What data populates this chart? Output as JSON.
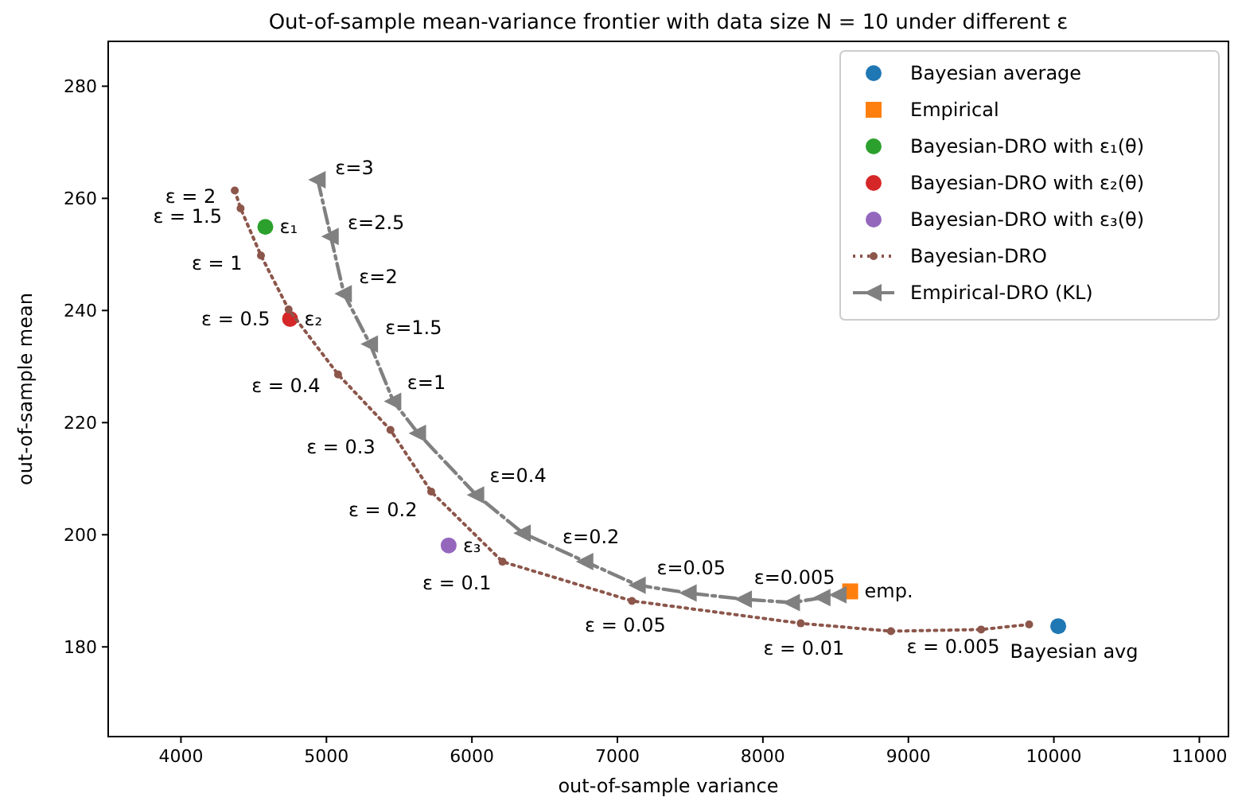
{
  "chart_data": {
    "type": "scatter",
    "title": "Out-of-sample mean-variance frontier with data size N = 10 under different ε",
    "xlabel": "out-of-sample variance",
    "ylabel": "out-of-sample mean",
    "xlim": [
      3500,
      11200
    ],
    "ylim": [
      164,
      288
    ],
    "xticks": [
      4000,
      5000,
      6000,
      7000,
      8000,
      9000,
      10000,
      11000
    ],
    "yticks": [
      180,
      200,
      220,
      240,
      260,
      280
    ],
    "grid": false,
    "legend": "top right",
    "series": [
      {
        "name": "Bayesian average",
        "color": "#1f77b4",
        "marker": "circle",
        "x": [
          10030
        ],
        "values": [
          183.7
        ]
      },
      {
        "name": "Empirical",
        "color": "#ff7f0e",
        "marker": "square",
        "x": [
          8600
        ],
        "values": [
          189.9
        ]
      },
      {
        "name": "Bayesian-DRO with ε₁(θ)",
        "color": "#2ca02c",
        "marker": "circle",
        "x": [
          4580
        ],
        "values": [
          254.9
        ]
      },
      {
        "name": "Bayesian-DRO with ε₂(θ)",
        "color": "#d62728",
        "marker": "circle",
        "x": [
          4750
        ],
        "values": [
          238.5
        ]
      },
      {
        "name": "Bayesian-DRO with ε₃(θ)",
        "color": "#9467bd",
        "marker": "circle",
        "x": [
          5840
        ],
        "values": [
          198.1
        ]
      },
      {
        "name": "Bayesian-DRO",
        "type": "line",
        "color": "#8c564b",
        "marker": "circle",
        "line_style": "dotted",
        "x": [
          4370,
          4410,
          4550,
          4740,
          5080,
          5440,
          5720,
          6210,
          7100,
          8260,
          8880,
          9500,
          9830
        ],
        "values": [
          261.4,
          258.2,
          249.8,
          240.2,
          228.6,
          218.7,
          207.7,
          195.2,
          188.2,
          184.2,
          182.8,
          183.1,
          184.0
        ]
      },
      {
        "name": "Empirical-DRO (KL)",
        "type": "line",
        "color": "#808080",
        "marker": "triangle",
        "line_style": "dashed",
        "x": [
          4940,
          5030,
          5120,
          5300,
          5460,
          5630,
          6030,
          6350,
          6780,
          7140,
          7490,
          7870,
          8200,
          8410,
          8520
        ],
        "values": [
          263.3,
          253.2,
          243.0,
          234.0,
          223.8,
          218.1,
          207.1,
          200.3,
          195.2,
          191.0,
          189.6,
          188.5,
          187.9,
          188.8,
          189.3
        ]
      }
    ],
    "annotations": [
      {
        "text": "ε = 2",
        "x": 4370,
        "y": 261.4
      },
      {
        "text": "ε = 1.5",
        "x": 4410,
        "y": 258.2
      },
      {
        "text": "ε = 1",
        "x": 4550,
        "y": 249.8
      },
      {
        "text": "ε = 0.5",
        "x": 4740,
        "y": 240.2
      },
      {
        "text": "ε = 0.4",
        "x": 5080,
        "y": 228.6
      },
      {
        "text": "ε = 0.3",
        "x": 5440,
        "y": 218.7
      },
      {
        "text": "ε = 0.2",
        "x": 5720,
        "y": 207.7
      },
      {
        "text": "ε = 0.1",
        "x": 6210,
        "y": 195.2
      },
      {
        "text": "ε = 0.05",
        "x": 7100,
        "y": 188.2
      },
      {
        "text": "ε = 0.01",
        "x": 8260,
        "y": 184.2
      },
      {
        "text": "ε = 0.005",
        "x": 8880,
        "y": 182.8
      },
      {
        "text": "Bayesian avg",
        "x": 10030,
        "y": 183.7
      },
      {
        "text": "emp.",
        "x": 8600,
        "y": 189.9
      },
      {
        "text": "ε₁",
        "x": 4580,
        "y": 254.9
      },
      {
        "text": "ε₂",
        "x": 4750,
        "y": 238.5
      },
      {
        "text": "ε₃",
        "x": 5840,
        "y": 198.1
      },
      {
        "text": "ε=3",
        "x": 4940,
        "y": 263.3
      },
      {
        "text": "ε=2.5",
        "x": 5030,
        "y": 253.2
      },
      {
        "text": "ε=2",
        "x": 5120,
        "y": 243.0
      },
      {
        "text": "ε=1.5",
        "x": 5300,
        "y": 234.0
      },
      {
        "text": "ε=1",
        "x": 5460,
        "y": 223.8
      },
      {
        "text": "ε=0.4",
        "x": 6030,
        "y": 207.1
      },
      {
        "text": "ε=0.2",
        "x": 6780,
        "y": 195.2
      },
      {
        "text": "ε=0.05",
        "x": 7490,
        "y": 189.6
      },
      {
        "text": "ε=0.005",
        "x": 8200,
        "y": 187.9
      }
    ]
  }
}
